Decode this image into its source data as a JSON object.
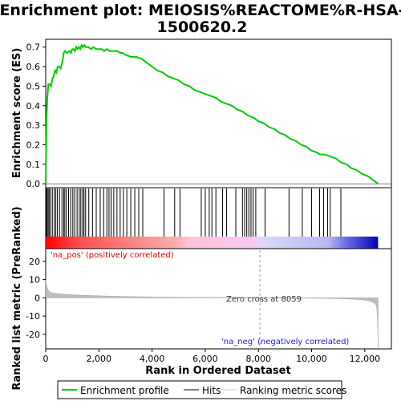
{
  "chart_data": {
    "type": "line",
    "title_lines": [
      "Enrichment plot: MEIOSIS%REACTOME%R-HSA-",
      "1500620.2"
    ],
    "xlabel": "Rank in Ordered Dataset",
    "ylabel_top": "Enrichment score (ES)",
    "ylabel_bottom": "Ranked list metric (PreRanked)",
    "xlim": [
      0,
      13000
    ],
    "x_ticks": [
      0,
      2000,
      4000,
      6000,
      8000,
      10000,
      12000
    ],
    "x_tick_labels": [
      "0",
      "2,000",
      "4,000",
      "6,000",
      "8,000",
      "10,000",
      "12,000"
    ],
    "es_ylim": [
      -0.02,
      0.74
    ],
    "es_ticks": [
      0.0,
      0.1,
      0.2,
      0.3,
      0.4,
      0.5,
      0.6,
      0.7
    ],
    "es_tick_labels": [
      "0.0",
      "0.1",
      "0.2",
      "0.3",
      "0.4",
      "0.5",
      "0.6",
      "0.7"
    ],
    "metric_ylim": [
      -28,
      27
    ],
    "metric_ticks": [
      20,
      10,
      0,
      -10,
      -20
    ],
    "metric_tick_labels": [
      "20",
      "10",
      "0",
      "-10",
      "-20"
    ],
    "zero_cross": 8059,
    "zero_cross_label": "Zero cross at 8059",
    "pos_label": "'na_pos' (positively correlated)",
    "neg_label": "'na_neg' (negatively correlated)",
    "n_genes": 12500,
    "series": [
      {
        "name": "Enrichment profile",
        "color": "#00cc00",
        "x": [
          0,
          30,
          60,
          100,
          150,
          200,
          260,
          300,
          350,
          400,
          450,
          500,
          560,
          620,
          680,
          720,
          800,
          900,
          950,
          1000,
          1050,
          1100,
          1150,
          1200,
          1250,
          1300,
          1350,
          1400,
          1450,
          1500,
          1600,
          1700,
          1800,
          1900,
          2000,
          2100,
          2200,
          2300,
          2400,
          2500,
          2600,
          2700,
          2800,
          2900,
          3000,
          3200,
          3400,
          3600,
          3800,
          4000,
          4200,
          4400,
          4600,
          4800,
          5000,
          5200,
          5400,
          5600,
          5800,
          6000,
          6200,
          6400,
          6600,
          6800,
          7000,
          7200,
          7400,
          7600,
          7800,
          8000,
          8200,
          8400,
          8600,
          8800,
          9000,
          9200,
          9400,
          9600,
          9800,
          10000,
          10200,
          10300,
          10500,
          10700,
          10900,
          11100,
          11300,
          11500,
          11700,
          11900,
          12100,
          12300,
          12500
        ],
        "y": [
          0.0,
          0.34,
          0.44,
          0.51,
          0.51,
          0.5,
          0.54,
          0.55,
          0.58,
          0.57,
          0.6,
          0.6,
          0.59,
          0.62,
          0.67,
          0.68,
          0.67,
          0.68,
          0.67,
          0.69,
          0.69,
          0.68,
          0.7,
          0.69,
          0.7,
          0.69,
          0.71,
          0.7,
          0.71,
          0.7,
          0.7,
          0.69,
          0.7,
          0.69,
          0.69,
          0.69,
          0.68,
          0.69,
          0.68,
          0.68,
          0.68,
          0.68,
          0.67,
          0.67,
          0.66,
          0.65,
          0.65,
          0.64,
          0.62,
          0.6,
          0.58,
          0.57,
          0.55,
          0.54,
          0.53,
          0.51,
          0.5,
          0.48,
          0.47,
          0.46,
          0.45,
          0.44,
          0.42,
          0.41,
          0.4,
          0.38,
          0.37,
          0.35,
          0.34,
          0.32,
          0.31,
          0.29,
          0.28,
          0.26,
          0.25,
          0.23,
          0.22,
          0.2,
          0.19,
          0.17,
          0.16,
          0.15,
          0.15,
          0.14,
          0.13,
          0.11,
          0.1,
          0.08,
          0.07,
          0.05,
          0.04,
          0.02,
          0.0
        ]
      }
    ],
    "hits": [
      20,
      50,
      90,
      130,
      180,
      250,
      320,
      380,
      440,
      520,
      610,
      680,
      720,
      780,
      860,
      940,
      1020,
      1090,
      1180,
      1260,
      1320,
      1390,
      1440,
      1500,
      1620,
      1760,
      1900,
      2050,
      2180,
      2300,
      2380,
      2460,
      2560,
      2680,
      2800,
      2920,
      3050,
      3200,
      3350,
      3500,
      3650,
      4450,
      4850,
      5050,
      5850,
      6000,
      6150,
      6250,
      6400,
      6650,
      6800,
      7150,
      7400,
      7480,
      7560,
      7640,
      7720,
      7800,
      7900,
      8250,
      9150,
      9650,
      10000,
      10300,
      10450,
      10600,
      10700,
      11100
    ],
    "legend": [
      {
        "label": "Enrichment profile",
        "color": "#00cc00"
      },
      {
        "label": "Hits",
        "color": "#000000"
      },
      {
        "label": "Ranking metric scores",
        "color": "#cccccc"
      }
    ]
  }
}
